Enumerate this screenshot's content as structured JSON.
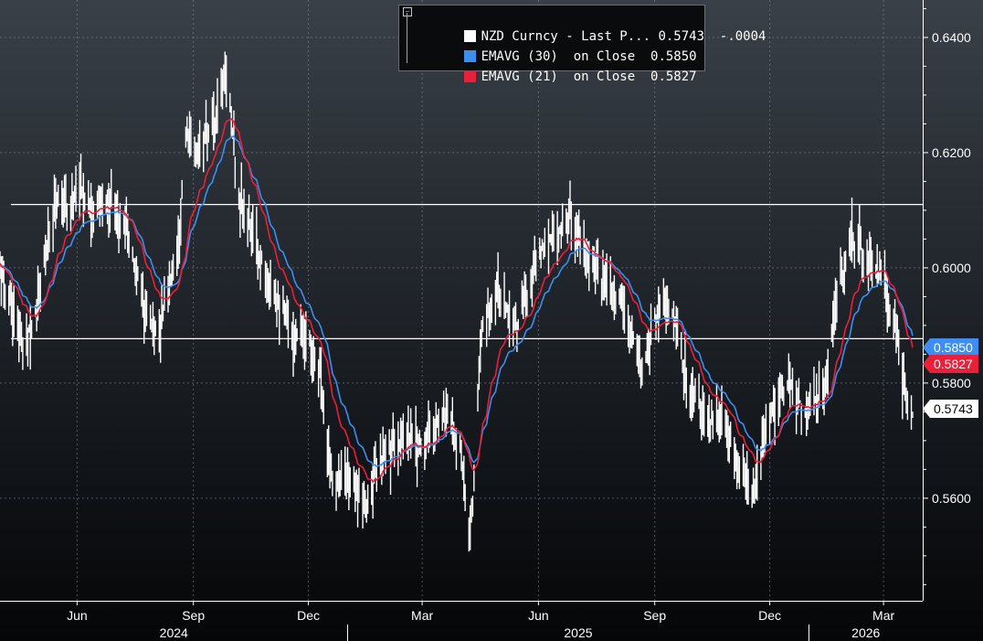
{
  "legend": {
    "toggle": "−",
    "series": [
      {
        "label": "NZD Curncy - Last P...",
        "value": "0.5743",
        "change": "-.0004",
        "color": "#ffffff"
      },
      {
        "label": "EMAVG (30)  on Close",
        "value": "0.5850",
        "change": "",
        "color": "#3d8ef0"
      },
      {
        "label": "EMAVG (21)  on Close",
        "value": "0.5827",
        "change": "",
        "color": "#e8203a"
      }
    ]
  },
  "tags": [
    {
      "text": "0.5850",
      "bg": "#3d8ef0",
      "fg": "#ffffff",
      "value": 0.585
    },
    {
      "text": "0.5827",
      "bg": "#e8203a",
      "fg": "#ffffff",
      "value": 0.5827
    },
    {
      "text": "0.5743",
      "bg": "#ffffff",
      "fg": "#000000",
      "value": 0.5743
    }
  ],
  "chart_data": {
    "type": "line",
    "ylim": [
      0.5422,
      0.6465
    ],
    "y_ticks": [
      {
        "value": 0.64,
        "label": "0.6400"
      },
      {
        "value": 0.62,
        "label": "0.6200"
      },
      {
        "value": 0.6,
        "label": "0.6000"
      },
      {
        "value": 0.58,
        "label": "0.5800"
      },
      {
        "value": 0.56,
        "label": "0.5600"
      }
    ],
    "horizontal_lines": [
      0.611,
      0.5877
    ],
    "x_start": "2024-04-01",
    "x_end": "2026-04-01",
    "last_date": "2026-03-24",
    "x_months": [
      {
        "label": "Jun",
        "date": "2024-06-01"
      },
      {
        "label": "Sep",
        "date": "2024-09-01"
      },
      {
        "label": "Dec",
        "date": "2024-12-01"
      },
      {
        "label": "Mar",
        "date": "2025-03-01"
      },
      {
        "label": "Jun",
        "date": "2025-06-01"
      },
      {
        "label": "Sep",
        "date": "2025-09-01"
      },
      {
        "label": "Dec",
        "date": "2025-12-01"
      },
      {
        "label": "Mar",
        "date": "2026-03-01"
      }
    ],
    "x_years": [
      {
        "label": "2024",
        "from": "2024-04-01",
        "to": "2025-01-01"
      },
      {
        "label": "2025",
        "from": "2025-01-01",
        "to": "2026-01-01"
      },
      {
        "label": "2026",
        "from": "2026-01-01",
        "to": "2026-04-01"
      }
    ],
    "price_anchors": [
      [
        "2024-04-01",
        0.599
      ],
      [
        "2024-04-12",
        0.592
      ],
      [
        "2024-04-19",
        0.586
      ],
      [
        "2024-05-01",
        0.594
      ],
      [
        "2024-05-16",
        0.613
      ],
      [
        "2024-05-24",
        0.61
      ],
      [
        "2024-06-01",
        0.615
      ],
      [
        "2024-06-14",
        0.61
      ],
      [
        "2024-06-28",
        0.611
      ],
      [
        "2024-07-09",
        0.607
      ],
      [
        "2024-07-26",
        0.592
      ],
      [
        "2024-08-05",
        0.589
      ],
      [
        "2024-08-20",
        0.605
      ],
      [
        "2024-08-26",
        0.623
      ],
      [
        "2024-09-01",
        0.62
      ],
      [
        "2024-09-17",
        0.624
      ],
      [
        "2024-09-27",
        0.635
      ],
      [
        "2024-10-07",
        0.612
      ],
      [
        "2024-10-21",
        0.604
      ],
      [
        "2024-11-06",
        0.595
      ],
      [
        "2024-11-18",
        0.588
      ],
      [
        "2024-11-27",
        0.59
      ],
      [
        "2024-12-10",
        0.581
      ],
      [
        "2024-12-20",
        0.564
      ],
      [
        "2025-01-06",
        0.562
      ],
      [
        "2025-01-14",
        0.558
      ],
      [
        "2025-01-28",
        0.567
      ],
      [
        "2025-02-14",
        0.57
      ],
      [
        "2025-03-01",
        0.569
      ],
      [
        "2025-03-18",
        0.575
      ],
      [
        "2025-03-31",
        0.57
      ],
      [
        "2025-04-08",
        0.552
      ],
      [
        "2025-04-17",
        0.589
      ],
      [
        "2025-04-30",
        0.596
      ],
      [
        "2025-05-16",
        0.59
      ],
      [
        "2025-06-01",
        0.603
      ],
      [
        "2025-06-13",
        0.606
      ],
      [
        "2025-06-27",
        0.609
      ],
      [
        "2025-07-11",
        0.601
      ],
      [
        "2025-07-28",
        0.596
      ],
      [
        "2025-08-07",
        0.593
      ],
      [
        "2025-08-22",
        0.583
      ],
      [
        "2025-09-05",
        0.594
      ],
      [
        "2025-09-15",
        0.592
      ],
      [
        "2025-09-29",
        0.578
      ],
      [
        "2025-10-14",
        0.573
      ],
      [
        "2025-10-24",
        0.574
      ],
      [
        "2025-11-07",
        0.564
      ],
      [
        "2025-11-19",
        0.561
      ],
      [
        "2025-11-27",
        0.572
      ],
      [
        "2025-12-05",
        0.576
      ],
      [
        "2025-12-16",
        0.58
      ],
      [
        "2025-12-30",
        0.575
      ],
      [
        "2026-01-12",
        0.579
      ],
      [
        "2026-01-24",
        0.596
      ],
      [
        "2026-02-03",
        0.605
      ],
      [
        "2026-02-13",
        0.603
      ],
      [
        "2026-02-23",
        0.6
      ],
      [
        "2026-03-03",
        0.596
      ],
      [
        "2026-03-10",
        0.59
      ],
      [
        "2026-03-17",
        0.58
      ],
      [
        "2026-03-24",
        0.5743
      ]
    ]
  }
}
